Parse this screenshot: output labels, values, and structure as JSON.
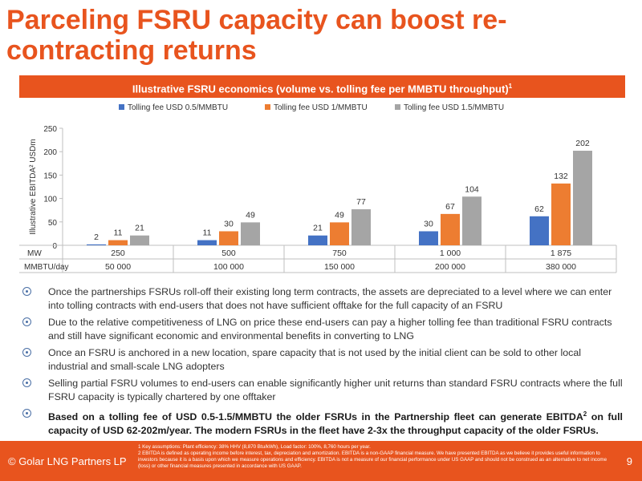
{
  "slide": {
    "title": "Parceling FSRU capacity can boost re-contracting returns",
    "chart_header": "Illustrative FSRU economics (volume vs. tolling fee per MMBTU throughput)",
    "chart_header_sup": "1",
    "bullets": [
      "Once the partnerships FSRUs roll-off their existing long term contracts, the assets are depreciated to a level where we can enter into tolling contracts with end-users that does not have sufficient offtake for the full capacity of an FSRU",
      "Due to the relative competitiveness of LNG on price these end-users can pay a higher tolling fee than traditional FSRU contracts and still have significant economic and environmental benefits in converting to LNG",
      "Once an FSRU is anchored in a new location, spare capacity that is not used by the initial client can be sold to other local industrial and small-scale LNG adopters",
      "Selling partial FSRU volumes to end-users can enable significantly higher unit returns than standard FSRU contracts where the full FSRU capacity is typically chartered by one offtaker"
    ],
    "bold_bullet_a": "Based on a tolling fee of USD 0.5-1.5/MMBTU the older FSRUs in the Partnership fleet can generate EBITDA",
    "bold_bullet_sup": "2",
    "bold_bullet_b": " on full capacity of USD 62-202m/year. The modern FSRUs in the fleet have 2-3x the throughput capacity of the older FSRUs.",
    "footer": {
      "brand": "© Golar LNG Partners LP",
      "page": "9",
      "note1": "1 Key assumptions: Plant efficiency: 38% HHV (8,870 Btu/kWh), Load factor: 100%, 8,760 hours per year.",
      "note2": "2 EBITDA is defined as operating income before interest, tax, depreciation and amortization. EBITDA is a non-GAAP financial measure. We have presented EBITDA as we believe it provides useful information to investors because it is a basis upon which we measure operations and efficiency. EBITDA is not a measure of our financial performance under US GAAP and should not be construed as an alternative to net income (loss) or other financial measures presented in accordance with US GAAP."
    },
    "colors": {
      "accent": "#e8541e",
      "series": [
        "#4472c4",
        "#ed7d31",
        "#a5a5a5"
      ]
    }
  },
  "chart_data": {
    "type": "bar",
    "title": "",
    "ylabel": "Illustrative EBITDA² USDm",
    "ylim": [
      0,
      250
    ],
    "yticks": [
      0,
      50,
      100,
      150,
      200,
      250
    ],
    "categories": [
      "250",
      "500",
      "750",
      "1 000",
      "1 875"
    ],
    "row_labels": {
      "mw": "MW",
      "mmbtu": "MMBTU/day"
    },
    "mmbtu_per_day": [
      "50 000",
      "100 000",
      "150 000",
      "200 000",
      "380 000"
    ],
    "series": [
      {
        "name": "Tolling fee USD 0.5/MMBTU",
        "values": [
          2,
          11,
          21,
          30,
          62
        ]
      },
      {
        "name": "Tolling fee USD 1/MMBTU",
        "values": [
          11,
          30,
          49,
          67,
          132
        ]
      },
      {
        "name": "Tolling fee USD 1.5/MMBTU",
        "values": [
          21,
          49,
          77,
          104,
          202
        ]
      }
    ],
    "legend_position": "top",
    "grid": false
  }
}
